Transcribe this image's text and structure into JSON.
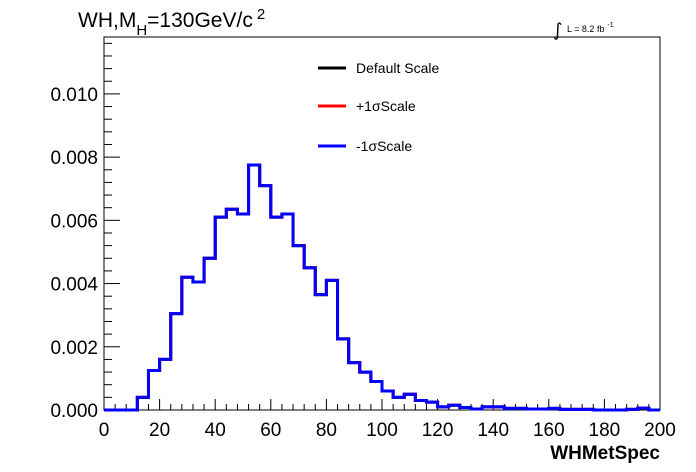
{
  "chart_data": {
    "type": "line",
    "title_parts": {
      "main": "WH,M",
      "sub": "H",
      "rest": "=130GeV/c",
      "sup": "2"
    },
    "lumi_parts": {
      "integral": "∫",
      "text": "L = 8.2 fb",
      "sup": "-1"
    },
    "xlabel": "WHMetSpec",
    "ylabel": "",
    "xlim": [
      0,
      200
    ],
    "ylim": [
      0,
      0.0118
    ],
    "x_ticks": [
      "0",
      "20",
      "40",
      "60",
      "80",
      "100",
      "120",
      "140",
      "160",
      "180",
      "200"
    ],
    "y_ticks": [
      "0.000",
      "0.002",
      "0.004",
      "0.006",
      "0.008",
      "0.010"
    ],
    "grid": false,
    "legend_position": "top-center",
    "bin_width": 4,
    "bin_edges_start": 0,
    "series": [
      {
        "name": "Default Scale",
        "color": "#000000",
        "values": [
          0,
          0,
          0,
          0.0004,
          0.00125,
          0.0016,
          0.00305,
          0.0042,
          0.00405,
          0.0048,
          0.0061,
          0.00635,
          0.0062,
          0.00775,
          0.0071,
          0.0061,
          0.0062,
          0.0052,
          0.0045,
          0.00365,
          0.0041,
          0.00225,
          0.0015,
          0.0012,
          0.0009,
          0.0006,
          0.0004,
          0.0005,
          0.0003,
          0.00025,
          0.0001,
          0.00015,
          8e-05,
          3e-05,
          0.0001,
          0.0001,
          5e-05,
          5e-05,
          3e-05,
          3e-05,
          5e-05,
          2e-05,
          2e-05,
          2e-05,
          0,
          0,
          0,
          2e-05,
          6e-05,
          0
        ]
      },
      {
        "name": "+1σScale",
        "color": "#ff0000",
        "values": [
          0,
          0,
          0,
          0.0004,
          0.00125,
          0.0016,
          0.00305,
          0.0042,
          0.00405,
          0.0048,
          0.0061,
          0.00635,
          0.0062,
          0.00775,
          0.0071,
          0.0061,
          0.0062,
          0.0052,
          0.0045,
          0.00365,
          0.0041,
          0.00225,
          0.0015,
          0.0012,
          0.0009,
          0.0006,
          0.0004,
          0.0005,
          0.0003,
          0.00025,
          0.0001,
          0.00015,
          8e-05,
          3e-05,
          0.0001,
          0.0001,
          5e-05,
          5e-05,
          3e-05,
          3e-05,
          5e-05,
          2e-05,
          2e-05,
          2e-05,
          0,
          0,
          0,
          2e-05,
          6e-05,
          0
        ]
      },
      {
        "name": "-1σScale",
        "color": "#0000ff",
        "values": [
          0,
          0,
          0,
          0.0004,
          0.00125,
          0.0016,
          0.00305,
          0.0042,
          0.00405,
          0.0048,
          0.0061,
          0.00635,
          0.0062,
          0.00775,
          0.0071,
          0.0061,
          0.0062,
          0.0052,
          0.0045,
          0.00365,
          0.0041,
          0.00225,
          0.0015,
          0.0012,
          0.0009,
          0.0006,
          0.0004,
          0.0005,
          0.0003,
          0.00025,
          0.0001,
          0.00015,
          8e-05,
          3e-05,
          0.0001,
          0.0001,
          5e-05,
          5e-05,
          3e-05,
          3e-05,
          5e-05,
          2e-05,
          2e-05,
          2e-05,
          0,
          0,
          0,
          2e-05,
          6e-05,
          0
        ]
      }
    ]
  }
}
